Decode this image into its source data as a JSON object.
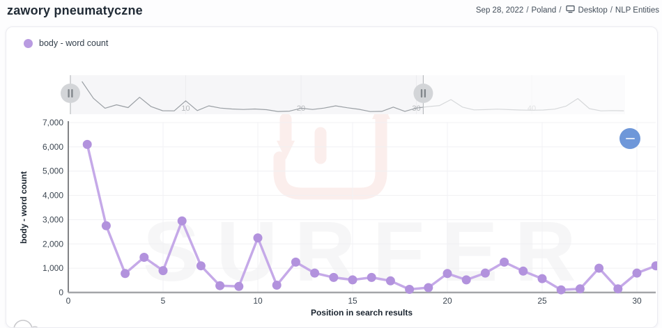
{
  "header": {
    "title": "zawory pneumatyczne",
    "meta": {
      "date": "Sep 28, 2022",
      "country": "Poland",
      "device": "Desktop",
      "mode": "NLP Entities",
      "separator": "/"
    }
  },
  "legend": {
    "label": "body - word count",
    "color": "#b99be1"
  },
  "watermark": {
    "text": "SURFER",
    "logo_icon": "surfer-logo"
  },
  "controls": {
    "collapse_icon": "minus"
  },
  "chart_data": {
    "type": "line",
    "title": "zawory pneumatyczne",
    "xlabel": "Position in search results",
    "ylabel": "body - word count",
    "series_name": "body - word count",
    "x": [
      1,
      2,
      3,
      4,
      5,
      6,
      7,
      8,
      9,
      10,
      11,
      12,
      13,
      14,
      15,
      16,
      17,
      18,
      19,
      20,
      21,
      22,
      23,
      24,
      25,
      26,
      27,
      28,
      29,
      30,
      31
    ],
    "values": [
      6100,
      2750,
      780,
      1450,
      900,
      2950,
      1100,
      280,
      250,
      2250,
      300,
      1250,
      800,
      620,
      520,
      620,
      480,
      130,
      200,
      780,
      520,
      800,
      1250,
      880,
      570,
      110,
      150,
      1000,
      150,
      800,
      1100
    ],
    "ylim": [
      0,
      7000
    ],
    "ytick_step": 1000,
    "ytick_labels": [
      "0",
      "1,000",
      "2,000",
      "3,000",
      "4,000",
      "5,000",
      "6,000",
      "7,000"
    ],
    "xticks": [
      0,
      5,
      10,
      15,
      20,
      25,
      30
    ],
    "grid": true,
    "legend_position": "top-left",
    "point_color": "#b292dd",
    "line_color": "#c5a9e8",
    "minimap": {
      "x_range": [
        0,
        48
      ],
      "ticks": [
        10,
        20,
        30,
        40
      ],
      "selected_range": [
        0,
        30.6
      ],
      "values": [
        6100,
        2750,
        780,
        1450,
        900,
        2950,
        1100,
        280,
        250,
        2250,
        300,
        1250,
        800,
        620,
        520,
        620,
        480,
        130,
        200,
        780,
        520,
        800,
        1250,
        880,
        570,
        110,
        150,
        1000,
        150,
        800,
        1100,
        1300,
        2500,
        1000,
        450,
        500,
        600,
        500,
        420,
        380,
        420,
        600,
        1200,
        2700,
        700,
        250,
        300,
        270
      ]
    }
  }
}
